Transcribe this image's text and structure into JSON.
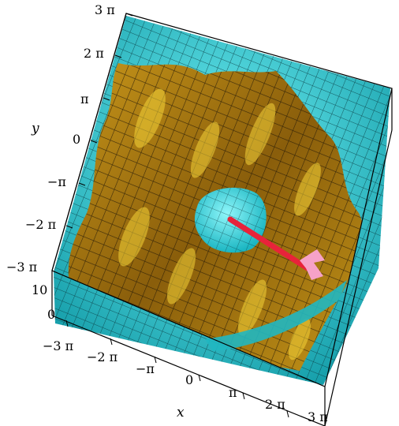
{
  "plot": {
    "x_axis": {
      "label": "x",
      "ticks": [
        "−3 π",
        "−2 π",
        "−π",
        "0",
        "π",
        "2 π",
        "3 π"
      ]
    },
    "y_axis": {
      "label": "y",
      "ticks": [
        "3 π",
        "2 π",
        "π",
        "0",
        "−π",
        "−2 π",
        "−3 π"
      ]
    },
    "z_axis": {
      "ticks": [
        "10",
        "0"
      ]
    },
    "colors": {
      "surface_gold": "#b8860b",
      "surface_dark": "#6e4a08",
      "surface_highlight": "#f5d33a",
      "bowl_cyan": "#22c7d0",
      "bowl_cyan_light": "#6ff0f4",
      "arrow_red": "#e8233a",
      "arrow_head_pink": "#f6a2c8"
    }
  }
}
